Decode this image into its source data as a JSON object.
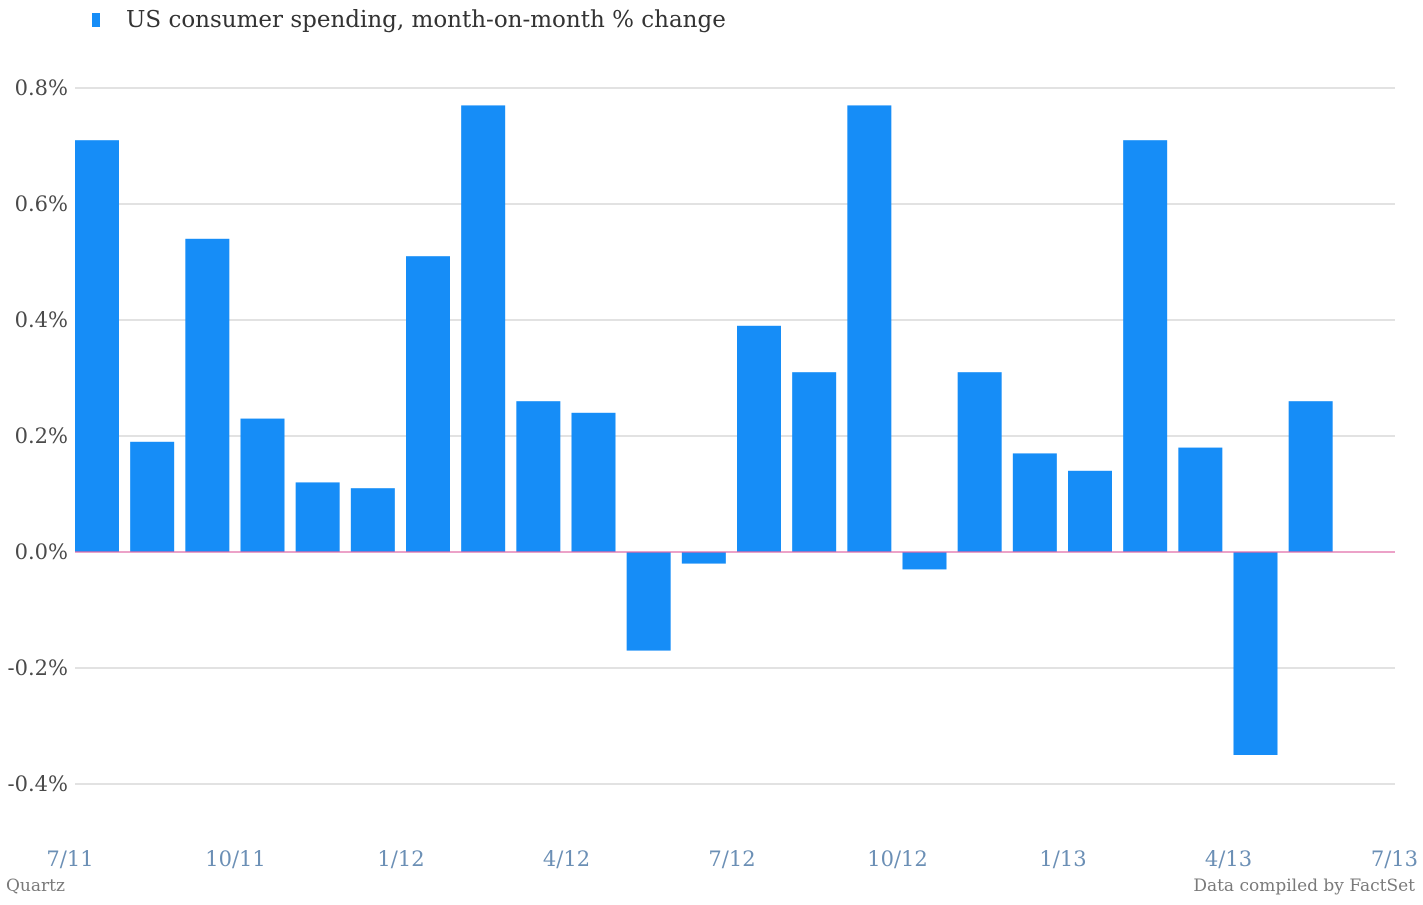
{
  "legend": {
    "label": "US consumer spending, month-on-month % change",
    "swatch_icon": "bar-legend-swatch"
  },
  "footer": {
    "source_left": "Quartz",
    "source_right": "Data compiled by FactSet"
  },
  "colors": {
    "bar": "#168df7",
    "zero_line": "#e06aa8",
    "grid": "#c4c4c4",
    "x_tick": "#6b8fb5",
    "y_tick": "#4a4a4a"
  },
  "chart_data": {
    "type": "bar",
    "title": "",
    "xlabel": "",
    "ylabel": "",
    "ylim": [
      -0.4,
      0.8
    ],
    "y_ticks": [
      0.8,
      0.6,
      0.4,
      0.2,
      0.0,
      -0.2,
      -0.4
    ],
    "y_tick_labels": [
      "0.8%",
      "0.6%",
      "0.4%",
      "0.2%",
      "0.0%",
      "-0.2%",
      "-0.4%"
    ],
    "x_tick_labels": [
      "7/11",
      "10/11",
      "1/12",
      "4/12",
      "7/12",
      "10/12",
      "1/13",
      "4/13",
      "7/13"
    ],
    "grid": true,
    "legend_position": "top-left",
    "series": [
      {
        "name": "US consumer spending, month-on-month % change",
        "color": "#168df7",
        "points": [
          {
            "date": "2011-07",
            "value": 0.71
          },
          {
            "date": "2011-08",
            "value": 0.19
          },
          {
            "date": "2011-09",
            "value": 0.54
          },
          {
            "date": "2011-10",
            "value": 0.23
          },
          {
            "date": "2011-11",
            "value": 0.12
          },
          {
            "date": "2011-12",
            "value": 0.11
          },
          {
            "date": "2012-01",
            "value": 0.51
          },
          {
            "date": "2012-02",
            "value": 0.77
          },
          {
            "date": "2012-03",
            "value": 0.26
          },
          {
            "date": "2012-04",
            "value": 0.24
          },
          {
            "date": "2012-05",
            "value": -0.17
          },
          {
            "date": "2012-06",
            "value": -0.02
          },
          {
            "date": "2012-07",
            "value": 0.39
          },
          {
            "date": "2012-08",
            "value": 0.31
          },
          {
            "date": "2012-09",
            "value": 0.77
          },
          {
            "date": "2012-10",
            "value": -0.03
          },
          {
            "date": "2012-11",
            "value": 0.31
          },
          {
            "date": "2012-12",
            "value": 0.17
          },
          {
            "date": "2013-01",
            "value": 0.14
          },
          {
            "date": "2013-02",
            "value": 0.71
          },
          {
            "date": "2013-03",
            "value": 0.18
          },
          {
            "date": "2013-04",
            "value": -0.35
          },
          {
            "date": "2013-05",
            "value": 0.26
          }
        ]
      }
    ]
  }
}
